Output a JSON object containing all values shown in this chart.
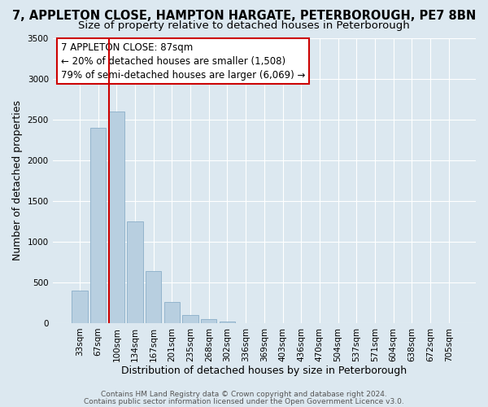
{
  "title": "7, APPLETON CLOSE, HAMPTON HARGATE, PETERBOROUGH, PE7 8BN",
  "subtitle": "Size of property relative to detached houses in Peterborough",
  "xlabel": "Distribution of detached houses by size in Peterborough",
  "ylabel": "Number of detached properties",
  "bar_labels": [
    "33sqm",
    "67sqm",
    "100sqm",
    "134sqm",
    "167sqm",
    "201sqm",
    "235sqm",
    "268sqm",
    "302sqm",
    "336sqm",
    "369sqm",
    "403sqm",
    "436sqm",
    "470sqm",
    "504sqm",
    "537sqm",
    "571sqm",
    "604sqm",
    "638sqm",
    "672sqm",
    "705sqm"
  ],
  "bar_values": [
    400,
    2400,
    2600,
    1250,
    640,
    260,
    100,
    50,
    20,
    0,
    0,
    0,
    0,
    0,
    0,
    0,
    0,
    0,
    0,
    0,
    0
  ],
  "bar_color": "#b8cfe0",
  "bar_edge_color": "#8aaec8",
  "vline_color": "#cc0000",
  "annotation_title": "7 APPLETON CLOSE: 87sqm",
  "annotation_line1": "← 20% of detached houses are smaller (1,508)",
  "annotation_line2": "79% of semi-detached houses are larger (6,069) →",
  "annotation_box_facecolor": "#ffffff",
  "annotation_box_edgecolor": "#cc0000",
  "ylim": [
    0,
    3500
  ],
  "yticks": [
    0,
    500,
    1000,
    1500,
    2000,
    2500,
    3000,
    3500
  ],
  "bg_color": "#dce8f0",
  "plot_bg_color": "#dce8f0",
  "grid_color": "#ffffff",
  "footer1": "Contains HM Land Registry data © Crown copyright and database right 2024.",
  "footer2": "Contains public sector information licensed under the Open Government Licence v3.0.",
  "title_fontsize": 10.5,
  "subtitle_fontsize": 9.5,
  "axis_label_fontsize": 9,
  "tick_fontsize": 7.5,
  "annotation_fontsize": 8.5,
  "footer_fontsize": 6.5
}
